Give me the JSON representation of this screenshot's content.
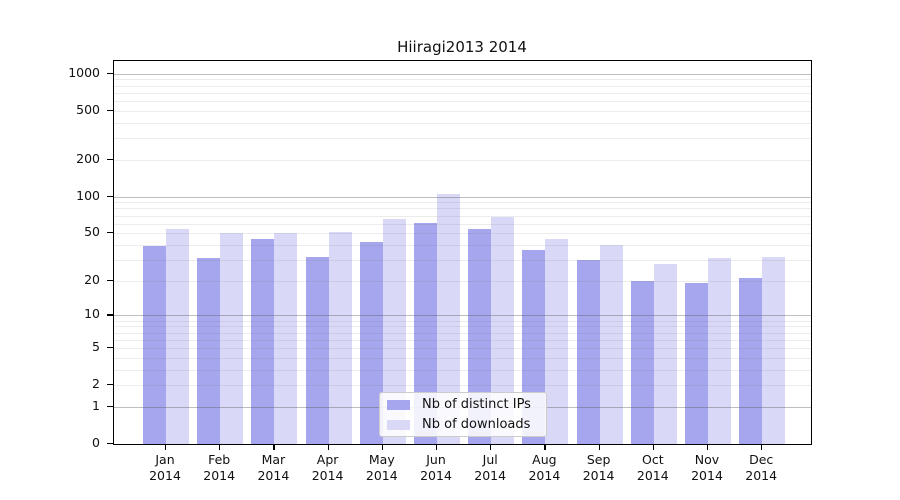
{
  "chart_data": {
    "type": "bar",
    "title": "Hiiragi2013 2014",
    "categories": [
      "Jan 2014",
      "Feb 2014",
      "Mar 2014",
      "Apr 2014",
      "May 2014",
      "Jun 2014",
      "Jul 2014",
      "Aug 2014",
      "Sep 2014",
      "Oct 2014",
      "Nov 2014",
      "Dec 2014"
    ],
    "series": [
      {
        "name": "Nb of distinct IPs",
        "color": "#a6a6ee",
        "values": [
          39,
          31,
          45,
          32,
          42,
          61,
          54,
          36,
          30,
          20,
          19,
          21
        ]
      },
      {
        "name": "Nb of downloads",
        "color": "#d9d9f7",
        "values": [
          54,
          50,
          50,
          51,
          66,
          106,
          68,
          45,
          40,
          28,
          31,
          32
        ]
      }
    ],
    "yticks": [
      0,
      1,
      2,
      5,
      10,
      20,
      50,
      100,
      200,
      500,
      1000
    ],
    "y_scale": "log10(value+1)",
    "ylim": [
      0,
      1250
    ],
    "xlabel": "",
    "ylabel": "",
    "grid": "horizontal major at powers of 10, faint minors at 2-9 multiples",
    "legend_position": "inside bottom-center",
    "bar_group": "paired bars per month, no gap within pair"
  }
}
